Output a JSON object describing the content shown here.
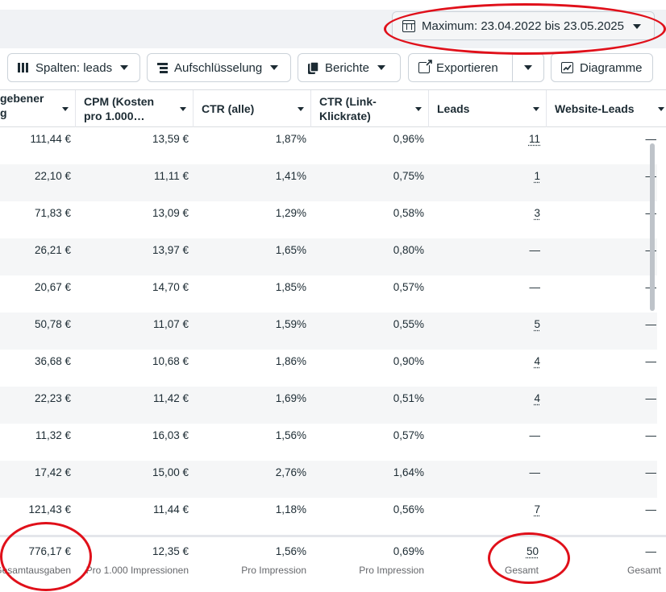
{
  "date_range": {
    "label": "Maximum: 23.04.2022 bis 23.05.2025"
  },
  "toolbar": {
    "columns_label": "Spalten: leads",
    "breakdown_label": "Aufschlüsselung",
    "reports_label": "Berichte",
    "export_label": "Exportieren",
    "charts_label": "Diagramme"
  },
  "table": {
    "headers": {
      "spend": "gebener\ng",
      "cpm": "CPM (Kosten\npro 1.000…",
      "ctr_all": "CTR (alle)",
      "ctr_link": "CTR (Link-\nKlickrate)",
      "leads": "Leads",
      "website_leads": "Website-Leads"
    },
    "rows": [
      {
        "spend": "111,44 €",
        "cpm": "13,59 €",
        "ctr_all": "1,87%",
        "ctr_link": "0,96%",
        "leads": "11",
        "website_leads": "—"
      },
      {
        "spend": "22,10 €",
        "cpm": "11,11 €",
        "ctr_all": "1,41%",
        "ctr_link": "0,75%",
        "leads": "1",
        "website_leads": "—"
      },
      {
        "spend": "71,83 €",
        "cpm": "13,09 €",
        "ctr_all": "1,29%",
        "ctr_link": "0,58%",
        "leads": "3",
        "website_leads": "—"
      },
      {
        "spend": "26,21 €",
        "cpm": "13,97 €",
        "ctr_all": "1,65%",
        "ctr_link": "0,80%",
        "leads": "—",
        "website_leads": "—"
      },
      {
        "spend": "20,67 €",
        "cpm": "14,70 €",
        "ctr_all": "1,85%",
        "ctr_link": "0,57%",
        "leads": "—",
        "website_leads": "—"
      },
      {
        "spend": "50,78 €",
        "cpm": "11,07 €",
        "ctr_all": "1,59%",
        "ctr_link": "0,55%",
        "leads": "5",
        "website_leads": "—"
      },
      {
        "spend": "36,68 €",
        "cpm": "10,68 €",
        "ctr_all": "1,86%",
        "ctr_link": "0,90%",
        "leads": "4",
        "website_leads": "—"
      },
      {
        "spend": "22,23 €",
        "cpm": "11,42 €",
        "ctr_all": "1,69%",
        "ctr_link": "0,51%",
        "leads": "4",
        "website_leads": "—"
      },
      {
        "spend": "11,32 €",
        "cpm": "16,03 €",
        "ctr_all": "1,56%",
        "ctr_link": "0,57%",
        "leads": "—",
        "website_leads": "—"
      },
      {
        "spend": "17,42 €",
        "cpm": "15,00 €",
        "ctr_all": "2,76%",
        "ctr_link": "1,64%",
        "leads": "—",
        "website_leads": "—"
      },
      {
        "spend": "121,43 €",
        "cpm": "11,44 €",
        "ctr_all": "1,18%",
        "ctr_link": "0,56%",
        "leads": "7",
        "website_leads": "—"
      }
    ],
    "totals": {
      "spend": {
        "value": "776,17 €",
        "sub": "Gesamtausgaben"
      },
      "cpm": {
        "value": "12,35 €",
        "sub": "Pro 1.000 Impressionen"
      },
      "ctr_all": {
        "value": "1,56%",
        "sub": "Pro Impression"
      },
      "ctr_link": {
        "value": "0,69%",
        "sub": "Pro Impression"
      },
      "leads": {
        "value": "50",
        "sub": "Gesamt"
      },
      "website_leads": {
        "value": "—",
        "sub": "Gesamt"
      }
    }
  },
  "colors": {
    "annotation": "#e0101a",
    "alt_row": "#f5f6f7",
    "border": "#cbd2d9"
  }
}
